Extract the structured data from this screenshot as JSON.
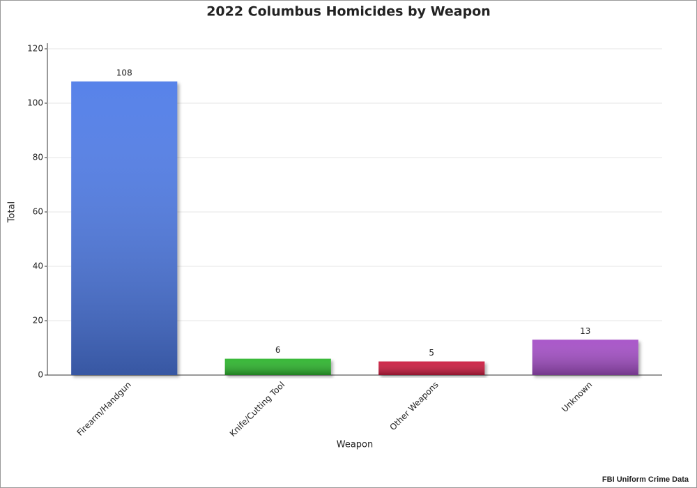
{
  "chart_data": {
    "type": "bar",
    "title": "2022 Columbus Homicides by Weapon",
    "x_label": "Weapon",
    "y_label": "Total",
    "source": "FBI Uniform Crime Data",
    "categories": [
      "Firearm/Handgun",
      "Knife/Cutting Tool",
      "Other Weapons",
      "Unknown"
    ],
    "values": [
      108,
      6,
      5,
      13
    ],
    "colors": [
      "#4f7be8",
      "#2db52d",
      "#cc1f3f",
      "#a54fc7"
    ],
    "ylim": [
      0,
      120
    ],
    "yticks": [
      0,
      20,
      40,
      60,
      80,
      100,
      120
    ],
    "grid": true
  }
}
